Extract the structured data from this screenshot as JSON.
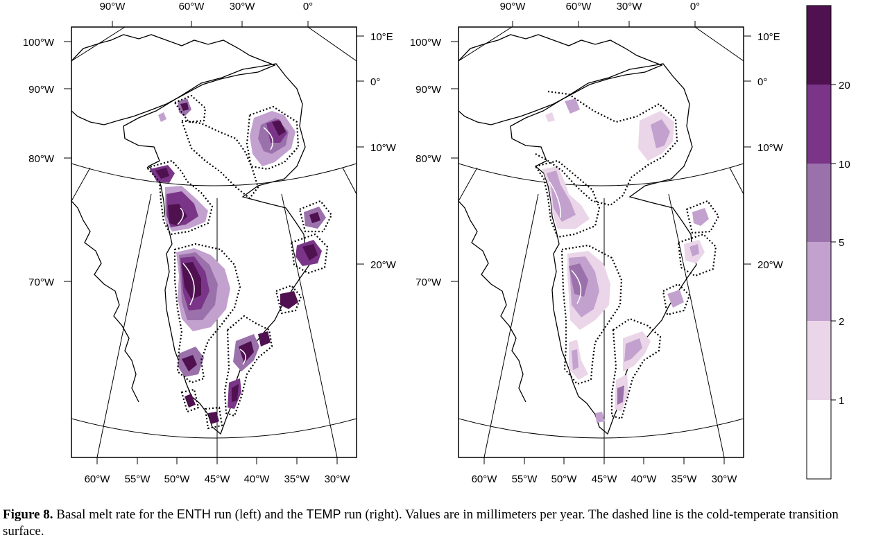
{
  "colors": {
    "bin_1_2": "#ead6e8",
    "bin_2_5": "#c3a1cf",
    "bin_5_10": "#9b71ab",
    "bin_10_20": "#7a3588",
    "bin_20_up": "#4f1150",
    "bin_0_1": "#ffffff",
    "outline": "#000000"
  },
  "panels": [
    {
      "run": "ENTH",
      "top_labels": [
        "90°W",
        "60°W",
        "30°W",
        "0°"
      ],
      "left_labels": [
        "100°W",
        "90°W",
        "80°W",
        "70°W"
      ],
      "right_labels": [
        "10°E",
        "0°",
        "10°W",
        "20°W"
      ],
      "bottom_labels": [
        "60°W",
        "55°W",
        "50°W",
        "45°W",
        "40°W",
        "35°W",
        "30°W"
      ]
    },
    {
      "run": "TEMP",
      "top_labels": [
        "90°W",
        "60°W",
        "30°W",
        "0°"
      ],
      "left_labels": [
        "100°W",
        "90°W",
        "80°W",
        "70°W"
      ],
      "right_labels": [
        "10°E",
        "0°",
        "10°W",
        "20°W"
      ],
      "bottom_labels": [
        "60°W",
        "55°W",
        "50°W",
        "45°W",
        "40°W",
        "35°W",
        "30°W"
      ]
    }
  ],
  "colorbar": {
    "labels": [
      "20",
      "10",
      "5",
      "2",
      "1"
    ]
  },
  "caption": {
    "label": "Figure 8.",
    "part1": "Basal melt rate for the",
    "run1": "ENTH",
    "part2": "run (left) and the",
    "run2": "TEMP",
    "part3": "run (right). Values are in millimeters per year. The dashed line is the cold-temperate transition surface."
  }
}
